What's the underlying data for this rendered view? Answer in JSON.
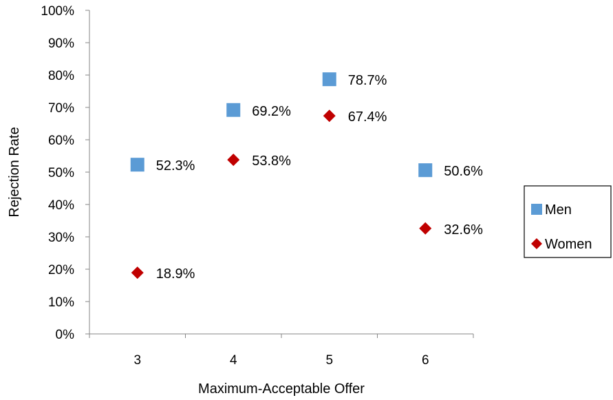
{
  "chart_data": {
    "type": "scatter",
    "title": "",
    "xlabel": "Maximum-Acceptable Offer",
    "ylabel": "Rejection Rate",
    "x": [
      3,
      4,
      5,
      6
    ],
    "x_tick_labels": [
      "3",
      "4",
      "5",
      "6"
    ],
    "y_tick_labels": [
      "0%",
      "10%",
      "20%",
      "30%",
      "40%",
      "50%",
      "60%",
      "70%",
      "80%",
      "90%",
      "100%"
    ],
    "ylim": [
      0,
      100
    ],
    "grid": false,
    "legend_position": "right",
    "series": [
      {
        "name": "Men",
        "marker": "square",
        "color": "#5B9BD5",
        "values": [
          52.3,
          69.2,
          78.7,
          50.6
        ],
        "labels": [
          "52.3%",
          "69.2%",
          "78.7%",
          "50.6%"
        ]
      },
      {
        "name": "Women",
        "marker": "diamond",
        "color": "#C00000",
        "values": [
          18.9,
          53.8,
          67.4,
          32.6
        ],
        "labels": [
          "18.9%",
          "53.8%",
          "67.4%",
          "32.6%"
        ]
      }
    ]
  }
}
